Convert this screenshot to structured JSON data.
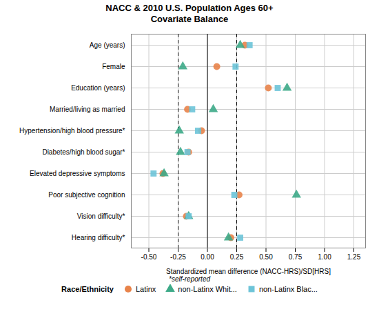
{
  "chart_data": {
    "type": "scatter",
    "title": "NACC & 2010 U.S. Population Ages 60+\nCovariate Balance",
    "xlabel": "Standardized mean difference (NACC-HRS)/SD[HRS]",
    "footnote": "*self-reported",
    "categories": [
      "Age (years)",
      "Female",
      "Education (years)",
      "Married/living as married",
      "Hypertension/high blood pressure*",
      "Diabetes/high blood sugar*",
      "Elevated depressive symptoms",
      "Poor subjective cognition",
      "Vision difficulty*",
      "Hearing difficulty*"
    ],
    "series": [
      {
        "name": "Latinx",
        "color": "#E8834A",
        "marker": "circle",
        "values": [
          0.32,
          0.08,
          0.52,
          -0.17,
          -0.05,
          -0.16,
          -0.38,
          0.27,
          -0.18,
          0.2
        ]
      },
      {
        "name": "non-Latinx Whit...",
        "color": "#3DAA88",
        "marker": "triangle",
        "values": [
          0.28,
          -0.21,
          0.68,
          0.05,
          -0.24,
          -0.23,
          -0.37,
          0.76,
          -0.16,
          0.18
        ]
      },
      {
        "name": "non-Latinx Blac...",
        "color": "#6DC4D8",
        "marker": "square",
        "values": [
          0.36,
          0.24,
          0.6,
          -0.13,
          -0.08,
          -0.17,
          -0.46,
          0.23,
          -0.16,
          0.28
        ]
      }
    ],
    "reference_lines": [
      {
        "value": 0,
        "line_style": "solid"
      },
      {
        "value": -0.25,
        "line_style": "dashed"
      },
      {
        "value": 0.25,
        "line_style": "dashed"
      }
    ],
    "xlim": [
      -0.65,
      1.35
    ],
    "xticks": [
      {
        "value": -0.5,
        "label": "-0.50"
      },
      {
        "value": -0.25,
        "label": "-0.25"
      },
      {
        "value": 0,
        "label": "0.00"
      },
      {
        "value": 0.25,
        "label": "0.25"
      },
      {
        "value": 0.5,
        "label": "0.50"
      },
      {
        "value": 0.75,
        "label": "0.75"
      },
      {
        "value": 1,
        "label": "1.00"
      },
      {
        "value": 1.25,
        "label": "1.25"
      }
    ],
    "grid": true,
    "legend_title": "Race/Ethnicity",
    "legend": "bottom"
  }
}
